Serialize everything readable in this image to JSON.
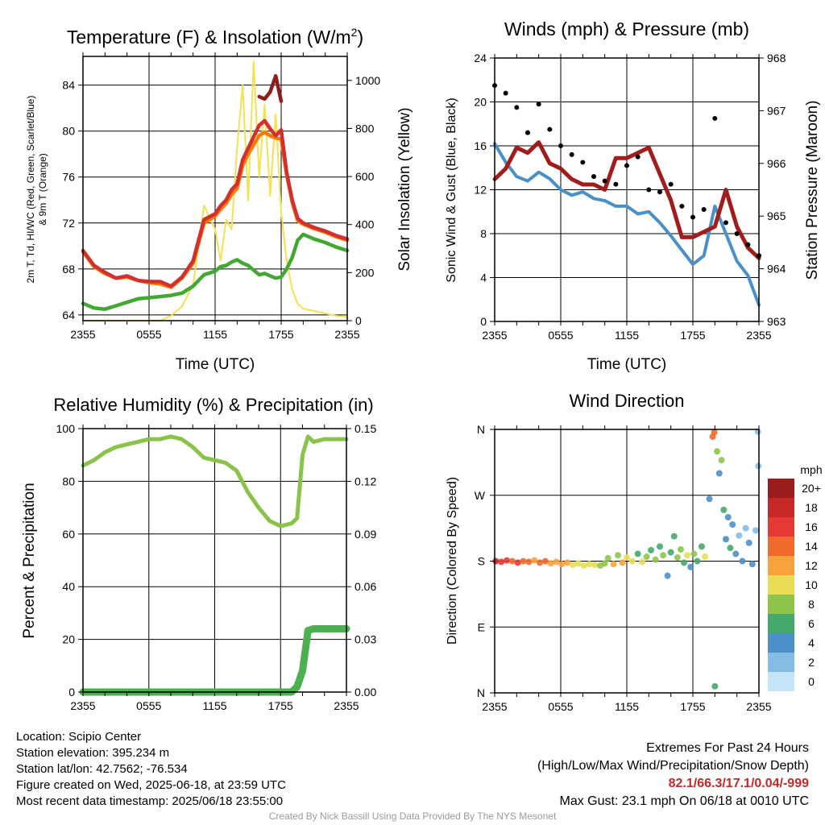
{
  "chart_data": [
    {
      "type": "line",
      "title": "Temperature (F) & Insolation (W/m²)",
      "title_main": "Temperature (F) & Insolation (W/m",
      "title_sup": "2",
      "title_end": ")",
      "xlabel": "Time (UTC)",
      "ylabel_left_line1": "2m T, Td, HI/WC (Red, Green, Scarlet/Blue)",
      "ylabel_left_line2": "& 9m T (Orange)",
      "ylabel_right": "Solar Insolation (Yellow)",
      "x_ticks": [
        "2355",
        "0555",
        "1155",
        "1755",
        "2355"
      ],
      "ylim_left": [
        63.5,
        86.5
      ],
      "y_ticks_left": [
        64,
        68,
        72,
        76,
        80,
        84
      ],
      "ylim_right": [
        0,
        1100
      ],
      "y_ticks_right": [
        0,
        200,
        400,
        600,
        800,
        1000
      ],
      "x": [
        0,
        1,
        2,
        3,
        4,
        5,
        6,
        7,
        8,
        9,
        10,
        11,
        12,
        12.5,
        13,
        13.5,
        14,
        14.5,
        15,
        15.5,
        16,
        16.5,
        17,
        17.5,
        18,
        18.5,
        19,
        19.5,
        20,
        21,
        22,
        23,
        24
      ],
      "series": [
        {
          "name": "Red",
          "color": "#d32f2f",
          "axis": "left",
          "values": [
            69.6,
            68.3,
            67.7,
            67.2,
            67.4,
            67.0,
            66.9,
            66.9,
            66.5,
            67.3,
            68.7,
            72.3,
            72.8,
            73.5,
            74.0,
            74.9,
            75.4,
            77.5,
            78.5,
            79.5,
            80.5,
            80.9,
            80.2,
            79.6,
            80.1,
            76.4,
            74.0,
            72.4,
            72.0,
            71.6,
            71.3,
            70.9,
            70.6
          ]
        },
        {
          "name": "Orange",
          "color": "#f57c00",
          "axis": "left",
          "values": [
            69.5,
            68.2,
            67.6,
            67.2,
            67.3,
            67.0,
            66.8,
            66.7,
            66.4,
            67.2,
            68.5,
            72.0,
            72.6,
            73.2,
            73.7,
            74.5,
            75.0,
            77.0,
            78.0,
            78.8,
            79.6,
            79.9,
            79.6,
            79.4,
            79.3,
            76.2,
            73.8,
            72.2,
            71.9,
            71.5,
            71.2,
            70.8,
            70.5
          ]
        },
        {
          "name": "Green",
          "color": "#43a832",
          "axis": "left",
          "values": [
            65.0,
            64.6,
            64.5,
            64.8,
            65.1,
            65.4,
            65.5,
            65.6,
            65.7,
            65.9,
            66.5,
            67.5,
            67.8,
            68.2,
            68.3,
            68.6,
            68.8,
            68.5,
            68.3,
            67.9,
            67.5,
            67.6,
            67.4,
            67.2,
            67.3,
            68.0,
            69.0,
            70.5,
            71.0,
            70.6,
            70.3,
            69.9,
            69.6
          ]
        },
        {
          "name": "Scarlet",
          "color": "#8e1e1e",
          "axis": "left",
          "values": [
            null,
            null,
            null,
            null,
            null,
            null,
            null,
            null,
            null,
            null,
            null,
            null,
            null,
            null,
            null,
            null,
            null,
            null,
            null,
            null,
            83.0,
            82.8,
            83.4,
            84.8,
            82.6,
            null,
            null,
            null,
            null,
            null,
            null,
            null,
            null
          ]
        },
        {
          "name": "Yellow",
          "color": "#f5e050",
          "axis": "right",
          "values": [
            0,
            0,
            0,
            0,
            0,
            0,
            0,
            0,
            20,
            60,
            150,
            480,
            380,
            250,
            420,
            380,
            720,
            980,
            500,
            1080,
            600,
            900,
            520,
            860,
            450,
            250,
            130,
            70,
            50,
            40,
            30,
            20,
            15
          ]
        }
      ]
    },
    {
      "type": "line",
      "title": "Winds (mph) & Pressure (mb)",
      "xlabel": "Time (UTC)",
      "ylabel_left": "Sonic Wind & Gust (Blue, Black)",
      "ylabel_right": "Station Pressure (Maroon)",
      "x_ticks": [
        "2355",
        "0555",
        "1155",
        "1755",
        "2355"
      ],
      "ylim_left": [
        0,
        24
      ],
      "y_ticks_left": [
        0,
        4,
        8,
        12,
        16,
        20,
        24
      ],
      "ylim_right": [
        963,
        968
      ],
      "y_ticks_right": [
        963,
        964,
        965,
        966,
        967,
        968
      ],
      "x": [
        0,
        1,
        2,
        3,
        4,
        5,
        6,
        7,
        8,
        9,
        10,
        11,
        12,
        13,
        14,
        15,
        16,
        17,
        18,
        19,
        20,
        21,
        22,
        23,
        24
      ],
      "series": [
        {
          "name": "Blue",
          "color": "#4a90c8",
          "axis": "left",
          "values": [
            16.2,
            14.5,
            13.2,
            12.8,
            13.6,
            13.0,
            12.0,
            11.5,
            11.8,
            11.2,
            11.0,
            10.5,
            10.5,
            9.8,
            10.0,
            9.0,
            7.8,
            6.5,
            5.2,
            6.0,
            10.5,
            8.0,
            5.5,
            4.2,
            1.5
          ]
        },
        {
          "name": "Maroon",
          "color": "#a31c1c",
          "axis": "right",
          "values": [
            965.7,
            965.9,
            966.3,
            966.2,
            966.4,
            966.0,
            965.9,
            965.7,
            965.6,
            965.6,
            965.5,
            966.1,
            966.1,
            966.2,
            966.3,
            965.8,
            965.3,
            964.6,
            964.6,
            964.7,
            964.8,
            965.5,
            964.8,
            964.4,
            964.2
          ]
        },
        {
          "name": "Black",
          "color": "#000000",
          "axis": "left",
          "values": [
            21.5,
            20.8,
            19.5,
            17.2,
            19.8,
            17.5,
            16.0,
            15.2,
            14.5,
            13.2,
            12.8,
            12.5,
            14.2,
            15.0,
            12.0,
            11.8,
            12.5,
            10.5,
            9.5,
            10.2,
            18.5,
            9.0,
            8.0,
            7.0,
            6.0
          ]
        }
      ]
    },
    {
      "type": "line",
      "title": "Relative Humidity (%) & Precipitation (in)",
      "ylabel_left": "Percent & Precipitation",
      "x_ticks": [
        "2355",
        "0555",
        "1155",
        "1755",
        "2355"
      ],
      "ylim_left": [
        0,
        100
      ],
      "y_ticks_left": [
        0,
        20,
        40,
        60,
        80,
        100
      ],
      "ylim_right": [
        0,
        0.15
      ],
      "y_ticks_right": [
        "0.00",
        "0.03",
        "0.06",
        "0.09",
        "0.12",
        "0.15"
      ],
      "x": [
        0,
        1,
        2,
        3,
        4,
        5,
        6,
        7,
        8,
        9,
        10,
        11,
        12,
        13,
        14,
        15,
        16,
        17,
        18,
        19,
        19.5,
        20,
        20.5,
        21,
        22,
        23,
        24
      ],
      "series": [
        {
          "name": "RH",
          "color": "#8bc34a",
          "axis": "left",
          "values": [
            86,
            88,
            91,
            93,
            94,
            95,
            96,
            96,
            97,
            96,
            93,
            89,
            88,
            87,
            84,
            76,
            70,
            65,
            63,
            64,
            66,
            90,
            97,
            95,
            96,
            96,
            96
          ]
        },
        {
          "name": "Precip",
          "color": "#4caf50",
          "axis": "right",
          "values": [
            0,
            0,
            0,
            0,
            0,
            0,
            0,
            0,
            0,
            0,
            0,
            0,
            0,
            0,
            0,
            0,
            0,
            0,
            0,
            0,
            0.003,
            0.012,
            0.035,
            0.036,
            0.036,
            0.036,
            0.036
          ]
        }
      ]
    },
    {
      "type": "scatter",
      "title": "Wind Direction",
      "ylabel_left": "Direction (Colored By Speed)",
      "x_ticks": [
        "2355",
        "0555",
        "1155",
        "1755",
        "2355"
      ],
      "y_ticks": [
        "N",
        "E",
        "S",
        "W",
        "N"
      ],
      "ylim": [
        0,
        360
      ],
      "legend": {
        "title": "mph",
        "placement": "right",
        "labels": [
          "20+",
          "18",
          "16",
          "14",
          "12",
          "10",
          "8",
          "6",
          "4",
          "2",
          "0"
        ],
        "colors": [
          "#9b1c1c",
          "#c62828",
          "#e53935",
          "#f06a2b",
          "#f8a23d",
          "#e8dd55",
          "#8ec44a",
          "#46a86a",
          "#4d8fc9",
          "#85bce6",
          "#c4e4f7"
        ]
      },
      "points": [
        {
          "x": 0.1,
          "dir": 180,
          "spd": 17
        },
        {
          "x": 0.6,
          "dir": 179,
          "spd": 16
        },
        {
          "x": 1.1,
          "dir": 181,
          "spd": 15
        },
        {
          "x": 1.6,
          "dir": 180,
          "spd": 14
        },
        {
          "x": 2.1,
          "dir": 178,
          "spd": 15
        },
        {
          "x": 2.6,
          "dir": 180,
          "spd": 13
        },
        {
          "x": 3.1,
          "dir": 179,
          "spd": 14
        },
        {
          "x": 3.6,
          "dir": 181,
          "spd": 12
        },
        {
          "x": 4.1,
          "dir": 178,
          "spd": 13
        },
        {
          "x": 4.6,
          "dir": 180,
          "spd": 14
        },
        {
          "x": 5.1,
          "dir": 177,
          "spd": 12
        },
        {
          "x": 5.6,
          "dir": 179,
          "spd": 11
        },
        {
          "x": 6.1,
          "dir": 176,
          "spd": 12
        },
        {
          "x": 6.6,
          "dir": 178,
          "spd": 11
        },
        {
          "x": 7.1,
          "dir": 175,
          "spd": 10
        },
        {
          "x": 7.6,
          "dir": 177,
          "spd": 10
        },
        {
          "x": 8.1,
          "dir": 174,
          "spd": 9
        },
        {
          "x": 8.6,
          "dir": 176,
          "spd": 10
        },
        {
          "x": 9.1,
          "dir": 175,
          "spd": 9
        },
        {
          "x": 9.6,
          "dir": 174,
          "spd": 8
        },
        {
          "x": 10.0,
          "dir": 177,
          "spd": 7
        },
        {
          "x": 10.3,
          "dir": 184,
          "spd": 8
        },
        {
          "x": 10.8,
          "dir": 176,
          "spd": 11
        },
        {
          "x": 11.2,
          "dir": 188,
          "spd": 7
        },
        {
          "x": 11.6,
          "dir": 178,
          "spd": 12
        },
        {
          "x": 12.0,
          "dir": 185,
          "spd": 9
        },
        {
          "x": 12.5,
          "dir": 180,
          "spd": 10
        },
        {
          "x": 13.0,
          "dir": 190,
          "spd": 6
        },
        {
          "x": 13.4,
          "dir": 179,
          "spd": 9
        },
        {
          "x": 13.8,
          "dir": 186,
          "spd": 7
        },
        {
          "x": 14.2,
          "dir": 195,
          "spd": 6
        },
        {
          "x": 14.6,
          "dir": 182,
          "spd": 8
        },
        {
          "x": 15.0,
          "dir": 200,
          "spd": 5
        },
        {
          "x": 15.3,
          "dir": 188,
          "spd": 7
        },
        {
          "x": 15.7,
          "dir": 160,
          "spd": 3
        },
        {
          "x": 16.0,
          "dir": 192,
          "spd": 5
        },
        {
          "x": 16.3,
          "dir": 214,
          "spd": 6
        },
        {
          "x": 16.6,
          "dir": 185,
          "spd": 7
        },
        {
          "x": 16.9,
          "dir": 196,
          "spd": 8
        },
        {
          "x": 17.2,
          "dir": 178,
          "spd": 6
        },
        {
          "x": 17.5,
          "dir": 188,
          "spd": 9
        },
        {
          "x": 17.8,
          "dir": 172,
          "spd": 4
        },
        {
          "x": 18.1,
          "dir": 190,
          "spd": 8
        },
        {
          "x": 18.4,
          "dir": 180,
          "spd": 6
        },
        {
          "x": 18.8,
          "dir": 200,
          "spd": 5
        },
        {
          "x": 19.1,
          "dir": 186,
          "spd": 9
        },
        {
          "x": 19.5,
          "dir": 265,
          "spd": 4
        },
        {
          "x": 19.8,
          "dir": 350,
          "spd": 13
        },
        {
          "x": 19.95,
          "dir": 356,
          "spd": 14
        },
        {
          "x": 20.0,
          "dir": 9,
          "spd": 6
        },
        {
          "x": 20.2,
          "dir": 330,
          "spd": 8
        },
        {
          "x": 20.4,
          "dir": 300,
          "spd": 4
        },
        {
          "x": 20.6,
          "dir": 318,
          "spd": 7
        },
        {
          "x": 20.8,
          "dir": 250,
          "spd": 5
        },
        {
          "x": 21.0,
          "dir": 210,
          "spd": 3
        },
        {
          "x": 21.2,
          "dir": 240,
          "spd": 4
        },
        {
          "x": 21.4,
          "dir": 198,
          "spd": 5
        },
        {
          "x": 21.6,
          "dir": 230,
          "spd": 3
        },
        {
          "x": 21.9,
          "dir": 190,
          "spd": 4
        },
        {
          "x": 22.2,
          "dir": 215,
          "spd": 2
        },
        {
          "x": 22.5,
          "dir": 180,
          "spd": 3
        },
        {
          "x": 22.8,
          "dir": 225,
          "spd": 2
        },
        {
          "x": 23.1,
          "dir": 205,
          "spd": 3
        },
        {
          "x": 23.4,
          "dir": 176,
          "spd": 4
        },
        {
          "x": 23.7,
          "dir": 222,
          "spd": 1
        },
        {
          "x": 23.9,
          "dir": 357,
          "spd": 1
        },
        {
          "x": 23.95,
          "dir": 310,
          "spd": 2
        }
      ]
    }
  ],
  "station": {
    "location": "Location: Scipio Center",
    "elevation": "Station elevation: 395.234 m",
    "latlon": "Station lat/lon: 42.7562; -76.534",
    "created": "Figure created on Wed, 2025-06-18, at 23:59 UTC",
    "recent": "Most recent data timestamp: 2025/06/18 23:55:00"
  },
  "extremes": {
    "title": "Extremes For Past 24 Hours",
    "subtitle": "(High/Low/Max Wind/Precipitation/Snow Depth)",
    "values": "82.1/66.3/17.1/0.04/-999",
    "gust": "Max Gust: 23.1 mph On 06/18 at 0010 UTC"
  },
  "credit": "Created By Nick Bassill Using Data Provided By The NYS Mesonet"
}
